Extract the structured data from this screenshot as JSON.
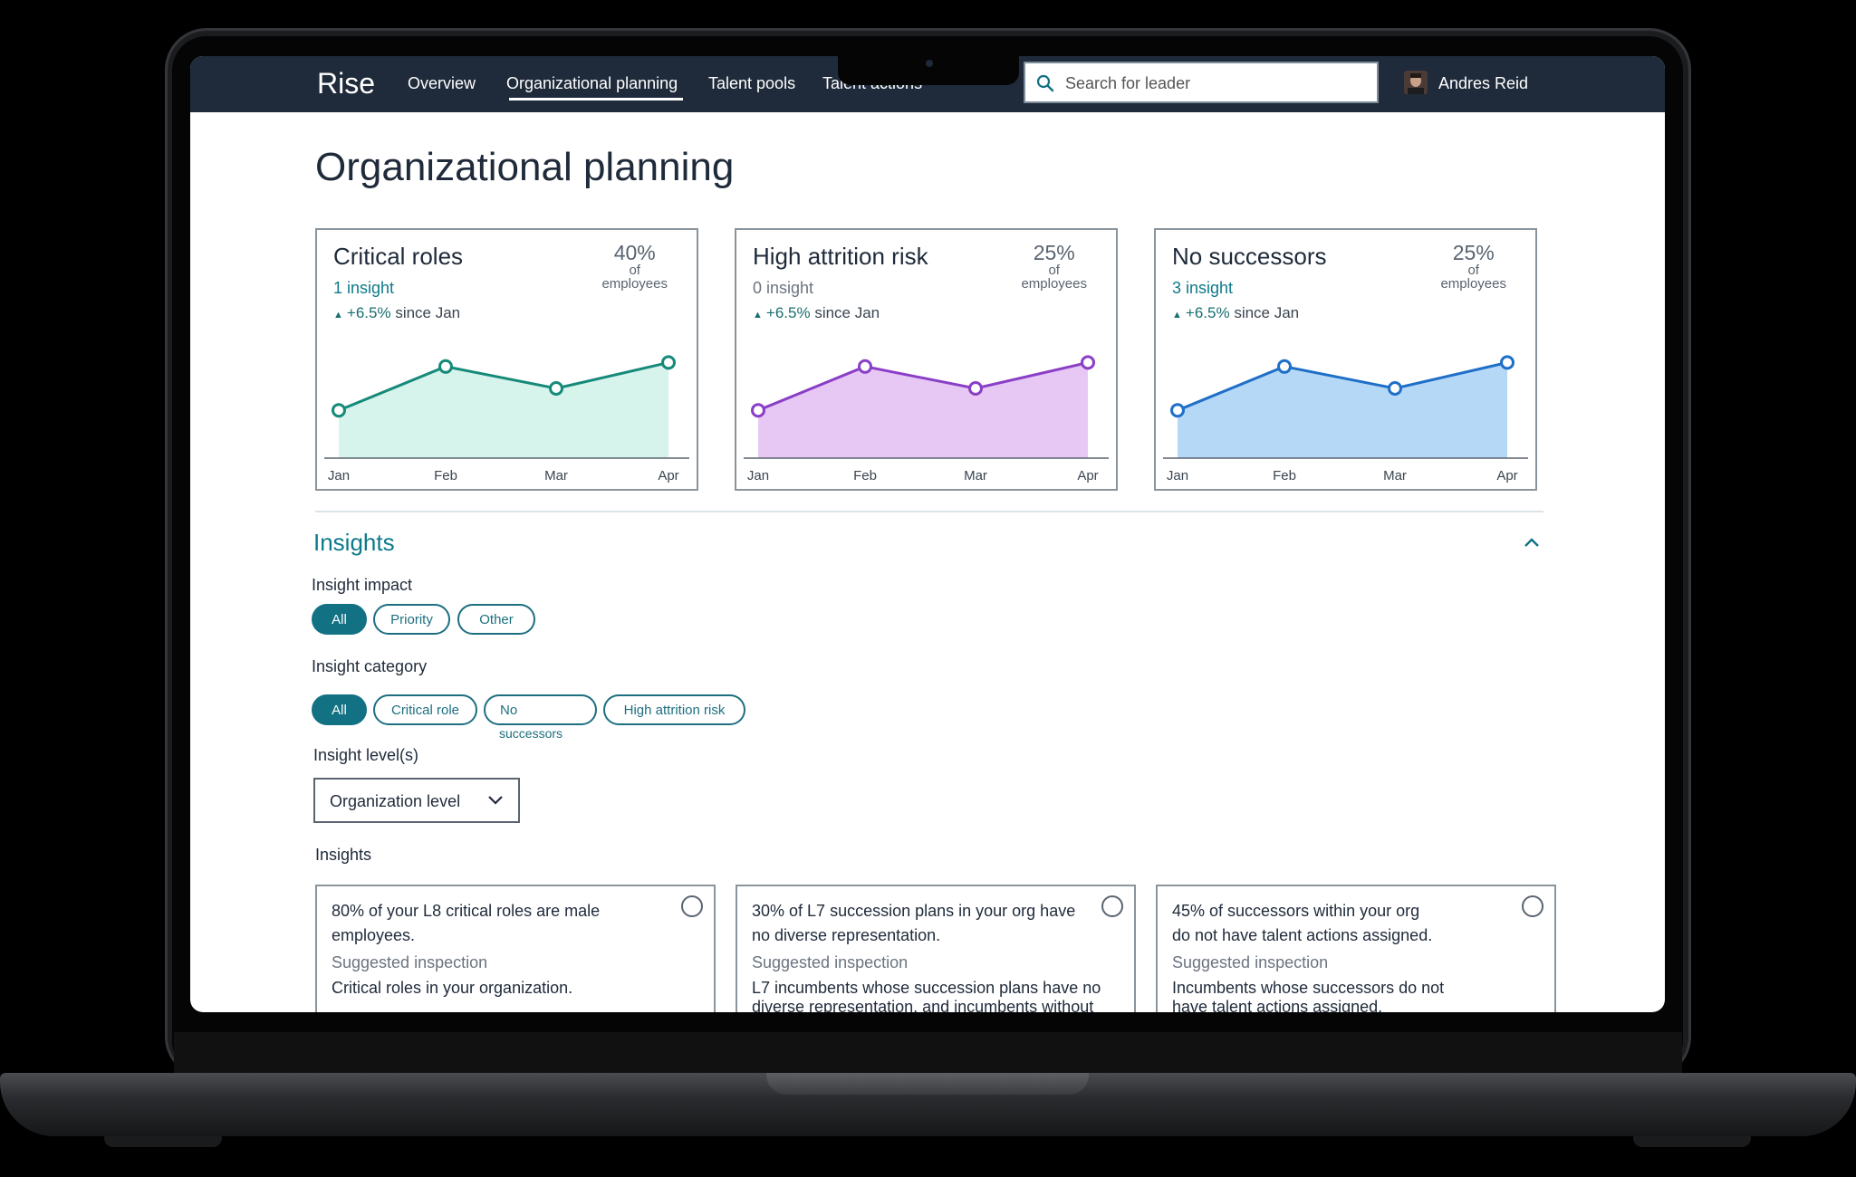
{
  "nav": {
    "logo": "Rise",
    "items": [
      "Overview",
      "Organizational planning",
      "Talent pools",
      "Talent actions"
    ],
    "search_placeholder": "Search for leader",
    "user_name": "Andres Reid"
  },
  "page": {
    "title": "Organizational planning"
  },
  "cards": [
    {
      "title": "Critical roles",
      "insight": "1 insight",
      "change_value": "+6.5%",
      "change_suffix": "since Jan",
      "percent": "40%",
      "percent_of": "of",
      "percent_unit": "employees",
      "color": "#168a7a",
      "fill": "#d6f3ec",
      "chart_data": {
        "type": "area",
        "categories": [
          "Jan",
          "Feb",
          "Mar",
          "Apr"
        ],
        "values": [
          1.2,
          2.3,
          1.75,
          2.4
        ],
        "ylim": [
          0,
          3
        ]
      }
    },
    {
      "title": "High attrition risk",
      "insight": "0 insight",
      "change_value": "+6.5%",
      "change_suffix": "since Jan",
      "percent": "25%",
      "percent_of": "of",
      "percent_unit": "employees",
      "color": "#8a3fc6",
      "fill": "#e7c8f5",
      "chart_data": {
        "type": "area",
        "categories": [
          "Jan",
          "Feb",
          "Mar",
          "Apr"
        ],
        "values": [
          1.2,
          2.3,
          1.75,
          2.4
        ],
        "ylim": [
          0,
          3
        ]
      }
    },
    {
      "title": "No successors",
      "insight": "3 insight",
      "change_value": "+6.5%",
      "change_suffix": "since Jan",
      "percent": "25%",
      "percent_of": "of",
      "percent_unit": "employees",
      "color": "#1f6fc8",
      "fill": "#b6d8f7",
      "chart_data": {
        "type": "area",
        "categories": [
          "Jan",
          "Feb",
          "Mar",
          "Apr"
        ],
        "values": [
          1.2,
          2.3,
          1.75,
          2.4
        ],
        "ylim": [
          0,
          3
        ]
      }
    }
  ],
  "insights": {
    "title": "Insights",
    "impact_label": "Insight impact",
    "impact_options": [
      "All",
      "Priority",
      "Other"
    ],
    "category_label": "Insight category",
    "category_options": [
      "All",
      "Critical role",
      "No",
      "High attrition risk"
    ],
    "category_sub": "successors",
    "level_label": "Insight level(s)",
    "level_value": "Organization level",
    "list_label": "Insights",
    "items": [
      {
        "text_line1": "80% of your L8 critical roles are male",
        "text_line2": "employees.",
        "sub": "Suggested inspection",
        "desc_line1": "Critical roles in your organization.",
        "desc_line2": ""
      },
      {
        "text_line1": "30% of L7 succession plans in your org have",
        "text_line2": "no diverse representation.",
        "sub": "Suggested inspection",
        "desc_line1": "L7 incumbents whose succession plans have no",
        "desc_line2": "diverse representation, and incumbents without"
      },
      {
        "text_line1": "45% of successors within your org",
        "text_line2": "do not have talent actions assigned.",
        "sub": "Suggested inspection",
        "desc_line1": "Incumbents whose successors do not",
        "desc_line2": "have talent actions assigned."
      }
    ]
  }
}
